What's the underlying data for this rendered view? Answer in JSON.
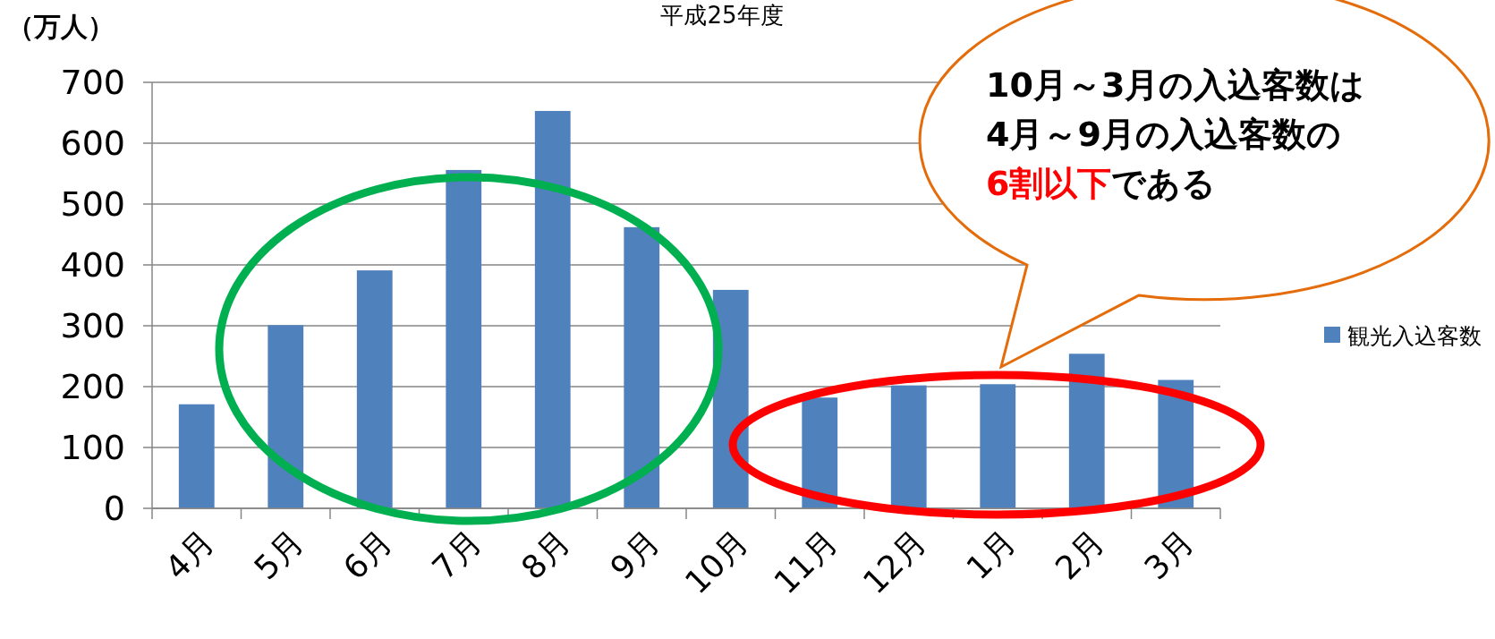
{
  "chart_data": {
    "type": "bar",
    "title": "平成25年度",
    "ylabel": "（万人）",
    "categories": [
      "4月",
      "5月",
      "6月",
      "7月",
      "8月",
      "9月",
      "10月",
      "11月",
      "12月",
      "1月",
      "2月",
      "3月"
    ],
    "series": [
      {
        "name": "観光入込客数",
        "color": "#4f81bd",
        "values": [
          171,
          301,
          391,
          556,
          653,
          462,
          359,
          182,
          202,
          204,
          254,
          211
        ]
      }
    ],
    "ylim": [
      0,
      700
    ],
    "yticks": [
      0,
      100,
      200,
      300,
      400,
      500,
      600,
      700
    ],
    "grid": "y",
    "legend": "right",
    "annotations": [
      "10月～3月の入込客数は",
      "4月～9月の入込客数の",
      "6割以下",
      "である"
    ]
  }
}
